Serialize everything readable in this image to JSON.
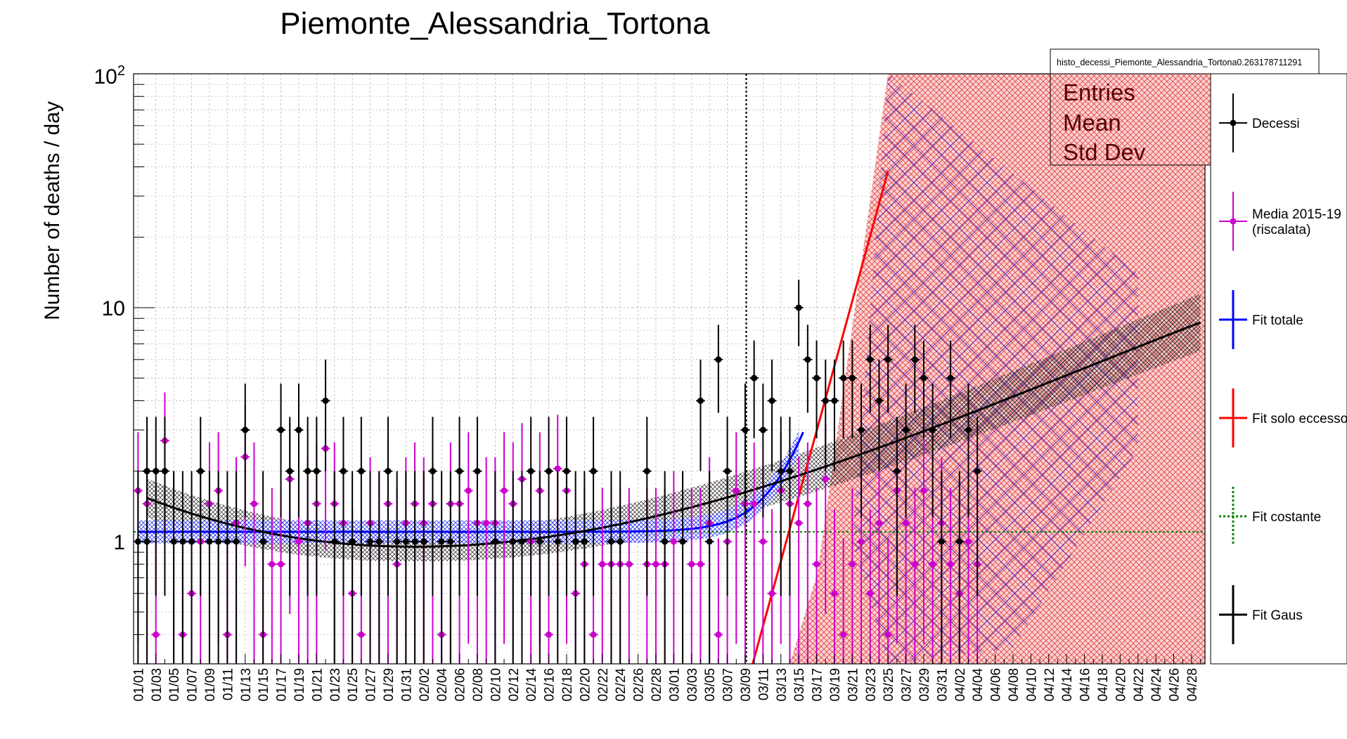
{
  "chart_data": {
    "type": "scatter",
    "title": "Piemonte_Alessandria_Tortona",
    "ylabel": "Number of deaths / day",
    "xlabel": "",
    "y_scale": "log",
    "ylim": [
      0.3,
      100
    ],
    "y_tick_labels": [
      {
        "value": 1,
        "label": "1"
      },
      {
        "value": 10,
        "label": "10"
      },
      {
        "value": 100,
        "label": "10^2"
      }
    ],
    "grid": true,
    "x_tick_labels": [
      "01/01",
      "01/03",
      "01/05",
      "01/07",
      "01/09",
      "01/11",
      "01/13",
      "01/15",
      "01/17",
      "01/19",
      "01/21",
      "01/23",
      "01/25",
      "01/27",
      "01/29",
      "01/31",
      "02/02",
      "02/04",
      "02/06",
      "02/08",
      "02/10",
      "02/12",
      "02/14",
      "02/16",
      "02/18",
      "02/20",
      "02/22",
      "02/24",
      "02/26",
      "02/28",
      "03/01",
      "03/03",
      "03/05",
      "03/07",
      "03/09",
      "03/11",
      "03/13",
      "03/15",
      "03/17",
      "03/19",
      "03/21",
      "03/23",
      "03/25",
      "03/27",
      "03/29",
      "03/31",
      "04/02",
      "04/04",
      "04/06",
      "04/08",
      "04/10",
      "04/12",
      "04/14",
      "04/16",
      "04/18",
      "04/20",
      "04/22",
      "04/24",
      "04/26",
      "04/28"
    ],
    "stats_box": {
      "histogram_name": "histo_decessi_Piemonte_Alessandria_Tortona0.263178711291",
      "rows": [
        "Entries",
        "Mean",
        "Std Dev"
      ]
    },
    "vertical_marker_day": 68,
    "legend": [
      {
        "label": "Decessi",
        "color": "#000000",
        "style": "marker"
      },
      {
        "label": "Media 2015-19\n(riscalata)",
        "color": "#cc00cc",
        "style": "marker"
      },
      {
        "label": "Fit totale",
        "color": "#0000ff",
        "style": "line"
      },
      {
        "label": "Fit solo eccesso",
        "color": "#ff0000",
        "style": "line"
      },
      {
        "label": "Fit costante",
        "color": "#008000",
        "style": "dotted"
      },
      {
        "label": "Fit Gaus",
        "color": "#000000",
        "style": "line"
      }
    ],
    "series": [
      {
        "name": "Decessi",
        "color": "#000000",
        "points": [
          [
            0,
            1
          ],
          [
            1,
            2
          ],
          [
            1,
            1
          ],
          [
            2,
            2
          ],
          [
            3,
            2
          ],
          [
            4,
            1
          ],
          [
            5,
            1
          ],
          [
            6,
            1
          ],
          [
            7,
            2
          ],
          [
            8,
            1
          ],
          [
            9,
            1
          ],
          [
            10,
            1
          ],
          [
            11,
            1
          ],
          [
            12,
            3
          ],
          [
            14,
            1
          ],
          [
            16,
            3
          ],
          [
            17,
            2
          ],
          [
            18,
            3
          ],
          [
            19,
            2
          ],
          [
            20,
            2
          ],
          [
            21,
            4
          ],
          [
            22,
            1
          ],
          [
            23,
            2
          ],
          [
            24,
            1
          ],
          [
            25,
            2
          ],
          [
            26,
            1
          ],
          [
            27,
            1
          ],
          [
            28,
            2
          ],
          [
            29,
            1
          ],
          [
            30,
            1
          ],
          [
            31,
            1
          ],
          [
            32,
            1
          ],
          [
            33,
            2
          ],
          [
            34,
            1
          ],
          [
            35,
            1
          ],
          [
            36,
            2
          ],
          [
            38,
            2
          ],
          [
            40,
            1
          ],
          [
            42,
            1
          ],
          [
            43,
            1
          ],
          [
            44,
            2
          ],
          [
            45,
            1
          ],
          [
            46,
            2
          ],
          [
            47,
            1
          ],
          [
            48,
            2
          ],
          [
            49,
            1
          ],
          [
            50,
            1
          ],
          [
            51,
            2
          ],
          [
            53,
            1
          ],
          [
            54,
            1
          ],
          [
            57,
            2
          ],
          [
            59,
            1
          ],
          [
            61,
            1
          ],
          [
            63,
            4
          ],
          [
            64,
            1
          ],
          [
            65,
            6
          ],
          [
            66,
            2
          ],
          [
            68,
            3
          ],
          [
            69,
            5
          ],
          [
            70,
            3
          ],
          [
            71,
            4
          ],
          [
            72,
            2
          ],
          [
            73,
            2
          ],
          [
            74,
            10
          ],
          [
            75,
            6
          ],
          [
            76,
            5
          ],
          [
            77,
            4
          ],
          [
            78,
            4
          ],
          [
            79,
            5
          ],
          [
            80,
            5
          ],
          [
            81,
            3
          ],
          [
            82,
            6
          ],
          [
            83,
            4
          ],
          [
            84,
            6
          ],
          [
            85,
            2
          ],
          [
            86,
            3
          ],
          [
            87,
            6
          ],
          [
            88,
            5
          ],
          [
            89,
            3
          ],
          [
            90,
            1
          ],
          [
            91,
            5
          ],
          [
            92,
            1
          ],
          [
            93,
            3
          ],
          [
            94,
            2
          ]
        ]
      },
      {
        "name": "Media 2015-19 (riscalata)",
        "color": "#cc00cc",
        "points": [
          [
            0,
            1.65
          ],
          [
            1,
            1.45
          ],
          [
            2,
            0.4
          ],
          [
            3,
            2.7
          ],
          [
            4,
            1
          ],
          [
            5,
            0.4
          ],
          [
            6,
            0.6
          ],
          [
            7,
            1
          ],
          [
            8,
            1.45
          ],
          [
            9,
            1.65
          ],
          [
            10,
            0.4
          ],
          [
            11,
            1.2
          ],
          [
            12,
            2.3
          ],
          [
            13,
            1.45
          ],
          [
            14,
            0.4
          ],
          [
            15,
            0.8
          ],
          [
            16,
            0.8
          ],
          [
            17,
            1.85
          ],
          [
            18,
            1
          ],
          [
            19,
            1.2
          ],
          [
            20,
            1.45
          ],
          [
            21,
            2.5
          ],
          [
            22,
            1.45
          ],
          [
            23,
            1.2
          ],
          [
            24,
            0.6
          ],
          [
            25,
            0.4
          ],
          [
            26,
            1.2
          ],
          [
            27,
            1
          ],
          [
            28,
            1.45
          ],
          [
            29,
            0.8
          ],
          [
            30,
            1.2
          ],
          [
            31,
            1.45
          ],
          [
            32,
            1.2
          ],
          [
            33,
            1.45
          ],
          [
            34,
            0.4
          ],
          [
            35,
            1.45
          ],
          [
            36,
            1.45
          ],
          [
            37,
            1.65
          ],
          [
            38,
            1.2
          ],
          [
            39,
            1.2
          ],
          [
            40,
            1.2
          ],
          [
            41,
            1.65
          ],
          [
            42,
            1.45
          ],
          [
            43,
            1.85
          ],
          [
            44,
            1
          ],
          [
            45,
            1.65
          ],
          [
            46,
            0.4
          ],
          [
            47,
            2.05
          ],
          [
            48,
            1.65
          ],
          [
            49,
            0.6
          ],
          [
            50,
            0.8
          ],
          [
            51,
            0.4
          ],
          [
            52,
            0.8
          ],
          [
            53,
            0.8
          ],
          [
            54,
            0.8
          ],
          [
            55,
            0.8
          ],
          [
            56,
            0
          ],
          [
            57,
            0.8
          ],
          [
            58,
            0.8
          ],
          [
            59,
            0.8
          ],
          [
            60,
            1
          ],
          [
            61,
            1
          ],
          [
            62,
            0.8
          ],
          [
            63,
            0.8
          ],
          [
            64,
            1.2
          ],
          [
            65,
            0.4
          ],
          [
            66,
            1
          ],
          [
            67,
            1.65
          ],
          [
            68,
            1.45
          ],
          [
            69,
            1.45
          ],
          [
            70,
            1
          ],
          [
            71,
            0.6
          ],
          [
            72,
            1.65
          ],
          [
            73,
            1.45
          ],
          [
            74,
            1.2
          ],
          [
            75,
            1.45
          ],
          [
            76,
            0.8
          ],
          [
            77,
            1.85
          ],
          [
            78,
            0.6
          ],
          [
            79,
            0.4
          ],
          [
            80,
            0.8
          ],
          [
            81,
            1
          ],
          [
            82,
            0.6
          ],
          [
            83,
            1.2
          ],
          [
            84,
            0.4
          ],
          [
            85,
            1.65
          ],
          [
            86,
            1.2
          ],
          [
            87,
            0.8
          ],
          [
            88,
            1.65
          ],
          [
            89,
            0.8
          ],
          [
            90,
            1.2
          ],
          [
            91,
            0.8
          ],
          [
            92,
            0.6
          ],
          [
            93,
            1
          ],
          [
            94,
            0.8
          ]
        ]
      },
      {
        "name": "Fit costante",
        "color": "#008000",
        "constant": 1.1
      }
    ]
  }
}
